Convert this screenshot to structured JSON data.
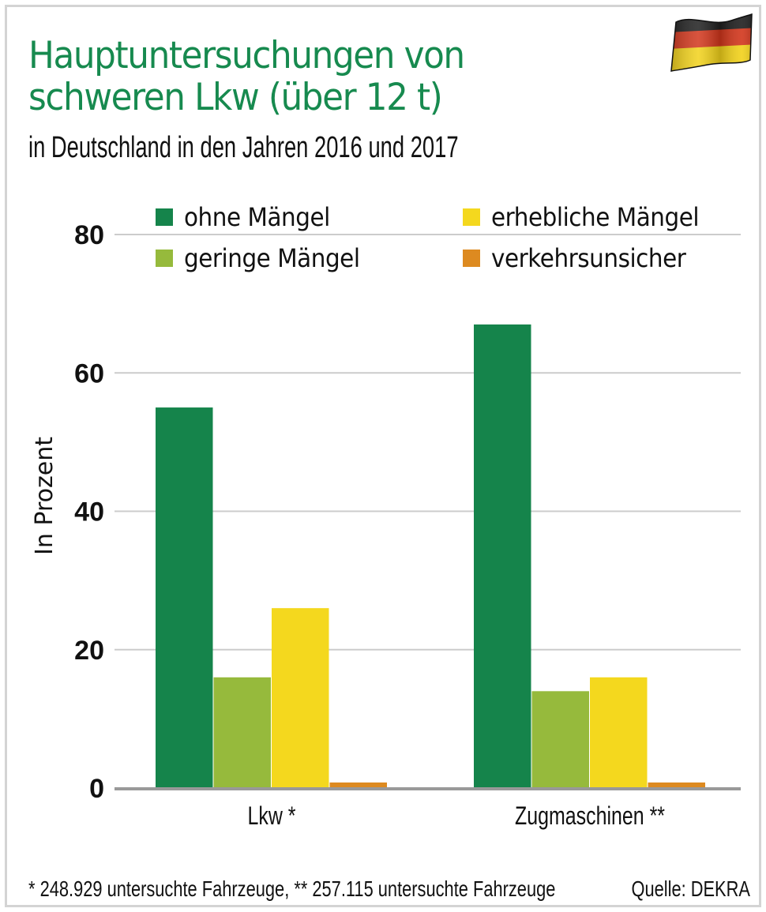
{
  "header": {
    "title_line1": "Hauptuntersuchungen von",
    "title_line2": "schweren Lkw (über 12 t)",
    "subtitle": "in Deutschland in den Jahren 2016 und 2017",
    "flag_icon": "germany-flag-icon"
  },
  "footer": {
    "footnote": "* 248.929 untersuchte Fahrzeuge, ** 257.115 untersuchte Fahrzeuge",
    "source": "Quelle: DEKRA"
  },
  "colors": {
    "title": "#178a4f",
    "flag": [
      "#1a1a1a",
      "#d2361c",
      "#f2d21a"
    ],
    "gridline": "#cccccc",
    "baseline": "#999999"
  },
  "chart_data": {
    "type": "bar",
    "title": "Hauptuntersuchungen von schweren Lkw (über 12 t)",
    "subtitle": "in Deutschland in den Jahren 2016 und 2017",
    "xlabel": "",
    "ylabel": "In Prozent",
    "ylim": [
      0,
      80
    ],
    "yticks": [
      0,
      20,
      40,
      60,
      80
    ],
    "grid": true,
    "legend_position": "top",
    "categories": [
      "Lkw *",
      "Zugmaschinen **"
    ],
    "series": [
      {
        "name": "ohne Mängel",
        "color": "#15844b",
        "values": [
          55,
          67
        ]
      },
      {
        "name": "geringe Mängel",
        "color": "#96ba3c",
        "values": [
          16,
          14
        ]
      },
      {
        "name": "erhebliche Mängel",
        "color": "#f4d81e",
        "values": [
          26,
          16
        ]
      },
      {
        "name": "verkehrsunsicher",
        "color": "#dd8a20",
        "values": [
          0.8,
          0.8
        ]
      }
    ]
  }
}
